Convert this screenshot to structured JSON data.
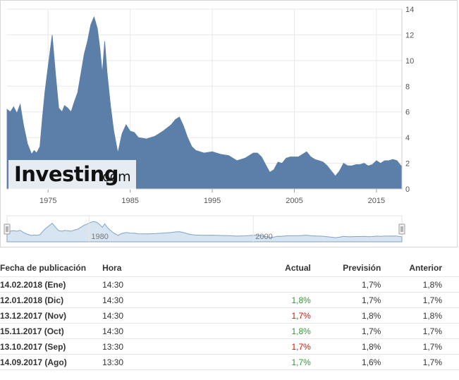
{
  "colors": {
    "fill": "#5b7fa9",
    "navigator_fill": "#d7e5f3",
    "navigator_line": "#7fa2c9",
    "actual_up": "#2e9b34",
    "actual_down": "#d91400"
  },
  "logo": {
    "word": "Investing",
    "tld": ".com"
  },
  "chart_data": {
    "type": "area",
    "title": "",
    "xlabel": "",
    "ylabel": "",
    "xlim": [
      1970.0,
      2018.1
    ],
    "ylim": [
      0,
      14
    ],
    "y_ticks": [
      "0",
      "2",
      "4",
      "6",
      "8",
      "10",
      "12",
      "14"
    ],
    "x_ticks": [
      "1975",
      "1985",
      "1995",
      "2005",
      "2015"
    ],
    "grid": true,
    "series": [
      {
        "x": [
          1970.0,
          1970.4,
          1970.8,
          1971.2,
          1971.6,
          1972.0,
          1972.5,
          1973.0,
          1973.3,
          1973.6,
          1974.0,
          1974.3,
          1974.6,
          1974.9,
          1975.2,
          1975.5,
          1975.9,
          1976.3,
          1976.7,
          1977.0,
          1977.4,
          1977.8,
          1978.2,
          1978.6,
          1979.0,
          1979.4,
          1979.8,
          1980.2,
          1980.6,
          1981.0,
          1981.3,
          1981.6,
          1981.9,
          1982.2,
          1982.6,
          1983.0,
          1983.5,
          1984.0,
          1984.5,
          1985.0,
          1985.5,
          1986.0,
          1987.0,
          1988.0,
          1989.0,
          1990.0,
          1990.5,
          1991.0,
          1991.5,
          1992.0,
          1992.5,
          1993.0,
          1994.0,
          1995.0,
          1996.0,
          1997.0,
          1998.0,
          1999.0,
          2000.0,
          2000.5,
          2001.0,
          2001.5,
          2002.0,
          2002.5,
          2003.0,
          2003.5,
          2004.0,
          2004.5,
          2005.0,
          2005.5,
          2006.0,
          2006.5,
          2007.0,
          2007.5,
          2008.0,
          2008.5,
          2009.0,
          2009.5,
          2010.0,
          2010.5,
          2011.0,
          2011.5,
          2012.0,
          2012.5,
          2013.0,
          2013.5,
          2014.0,
          2014.5,
          2015.0,
          2015.5,
          2016.0,
          2016.5,
          2017.0,
          2017.5,
          2018.0,
          2018.1
        ],
        "values": [
          6.2,
          6.0,
          6.4,
          5.9,
          6.6,
          5.0,
          3.5,
          2.7,
          3.0,
          2.8,
          3.3,
          5.5,
          7.5,
          9.0,
          10.5,
          12.0,
          9.0,
          6.3,
          6.0,
          6.5,
          6.3,
          6.0,
          6.8,
          7.5,
          9.0,
          10.5,
          11.5,
          12.8,
          13.4,
          12.5,
          11.0,
          9.0,
          11.5,
          9.0,
          6.5,
          4.5,
          2.8,
          4.3,
          5.0,
          4.5,
          4.4,
          4.0,
          3.9,
          4.1,
          4.5,
          5.0,
          5.4,
          5.6,
          4.9,
          4.0,
          3.3,
          3.0,
          2.8,
          2.9,
          2.7,
          2.6,
          2.2,
          2.4,
          2.8,
          2.8,
          2.5,
          1.9,
          1.3,
          1.5,
          2.1,
          2.0,
          2.4,
          2.5,
          2.5,
          2.5,
          2.7,
          2.9,
          2.5,
          2.3,
          2.2,
          2.1,
          1.8,
          1.4,
          1.0,
          1.4,
          2.0,
          1.8,
          1.8,
          1.9,
          1.9,
          2.0,
          1.8,
          1.9,
          2.2,
          2.0,
          2.2,
          2.2,
          2.3,
          2.2,
          1.8,
          1.8
        ]
      }
    ],
    "navigator_ticks": [
      "1980",
      "2000"
    ]
  },
  "table": {
    "headers": [
      "Fecha de publicación",
      "Hora",
      "Actual",
      "Previsión",
      "Anterior"
    ],
    "rows": [
      {
        "date": "14.02.2018 (Ene)",
        "time": "14:30",
        "actual": "",
        "actual_trend": "none",
        "forecast": "1,7%",
        "previous": "1,8%"
      },
      {
        "date": "12.01.2018 (Dic)",
        "time": "14:30",
        "actual": "1,8%",
        "actual_trend": "up",
        "forecast": "1,7%",
        "previous": "1,7%"
      },
      {
        "date": "13.12.2017 (Nov)",
        "time": "14:30",
        "actual": "1,7%",
        "actual_trend": "down",
        "forecast": "1,8%",
        "previous": "1,8%"
      },
      {
        "date": "15.11.2017 (Oct)",
        "time": "14:30",
        "actual": "1,8%",
        "actual_trend": "up",
        "forecast": "1,7%",
        "previous": "1,7%"
      },
      {
        "date": "13.10.2017 (Sep)",
        "time": "13:30",
        "actual": "1,7%",
        "actual_trend": "down",
        "forecast": "1,8%",
        "previous": "1,7%"
      },
      {
        "date": "14.09.2017 (Ago)",
        "time": "13:30",
        "actual": "1,7%",
        "actual_trend": "up",
        "forecast": "1,6%",
        "previous": "1,7%"
      }
    ]
  }
}
